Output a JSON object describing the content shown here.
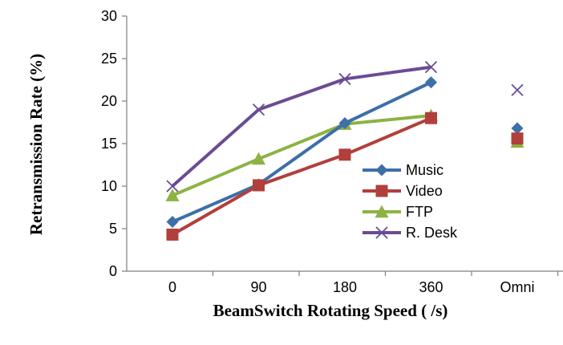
{
  "chart_data": {
    "type": "line",
    "title": "",
    "xlabel": "BeamSwitch Rotating Speed (  /s)",
    "ylabel": "Retransmission Rate (%)",
    "categories": [
      "0",
      "90",
      "180",
      "360",
      "Omni"
    ],
    "ylim": [
      0,
      30
    ],
    "yticks": [
      "0",
      "5",
      "10",
      "15",
      "20",
      "25",
      "30"
    ],
    "grid": false,
    "legend_position": "right",
    "series": [
      {
        "name": "Music",
        "color": "#3d6fa8",
        "marker": "diamond",
        "values": [
          5.8,
          10.2,
          17.4,
          22.2,
          16.8
        ],
        "connected_points": 4
      },
      {
        "name": "Video",
        "color": "#b13f3b",
        "marker": "square",
        "values": [
          4.3,
          10.1,
          13.7,
          18.0,
          15.6
        ],
        "connected_points": 4
      },
      {
        "name": "FTP",
        "color": "#8cb343",
        "marker": "triangle",
        "values": [
          8.9,
          13.2,
          17.3,
          18.3,
          15.2
        ],
        "connected_points": 4
      },
      {
        "name": "R. Desk",
        "color": "#6a4c93",
        "marker": "cross",
        "values": [
          10.0,
          19.0,
          22.6,
          24.0,
          21.3
        ],
        "connected_points": 4
      }
    ]
  }
}
